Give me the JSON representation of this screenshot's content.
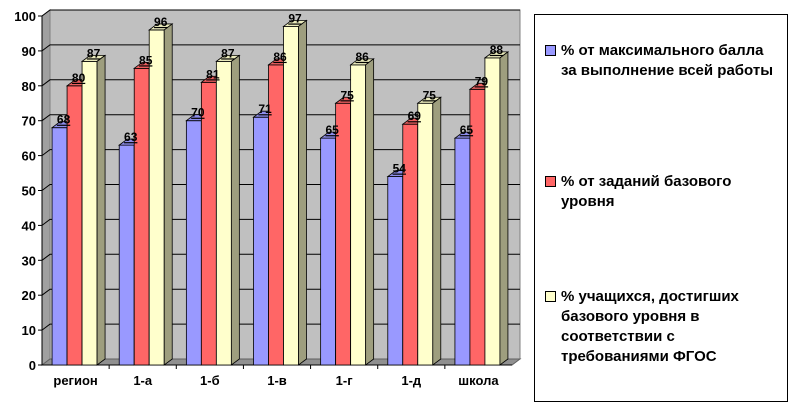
{
  "chart_data": {
    "type": "bar",
    "categories": [
      "регион",
      "1-а",
      "1-б",
      "1-в",
      "1-г",
      "1-д",
      "школа"
    ],
    "series": [
      {
        "name": "% от максимального балла за выполнение всей работы",
        "values": [
          68,
          63,
          70,
          71,
          65,
          54,
          65
        ],
        "color": "#9999FF"
      },
      {
        "name": "% от заданий базового уровня",
        "values": [
          80,
          85,
          81,
          86,
          75,
          69,
          79
        ],
        "color": "#FF6666"
      },
      {
        "name": "% учащихся, достигших базового уровня в соответствии с требованиями ФГОС",
        "values": [
          87,
          96,
          87,
          97,
          86,
          75,
          88
        ],
        "color": "#FFFFCC"
      }
    ],
    "ylim": [
      0,
      100
    ],
    "yticks": [
      "0",
      "10",
      "20",
      "30",
      "40",
      "50",
      "60",
      "70",
      "80",
      "90",
      "100"
    ],
    "grid": true,
    "legend_position": "right",
    "three_d": true,
    "plot_background": "#C0C0C0"
  }
}
